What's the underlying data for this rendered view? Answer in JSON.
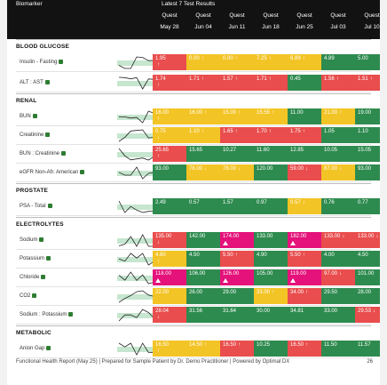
{
  "header": {
    "biomarker_label": "Biomarker",
    "latest_label": "Latest 7 Test Results",
    "columns": [
      {
        "source": "Quest",
        "date": "May 28"
      },
      {
        "source": "Quest",
        "date": "Jun 04"
      },
      {
        "source": "Quest",
        "date": "Jun 11"
      },
      {
        "source": "Quest",
        "date": "Jun 18"
      },
      {
        "source": "Quest",
        "date": "Jun 25"
      },
      {
        "source": "Quest",
        "date": "Jul 03"
      },
      {
        "source": "Quest",
        "date": "Jul 10"
      }
    ]
  },
  "sections": [
    {
      "title": "BLOOD GLUCOSE"
    },
    {
      "title": "RENAL"
    },
    {
      "title": "PROSTATE"
    },
    {
      "title": "ELECTROLYTES"
    },
    {
      "title": "METABOLIC"
    }
  ],
  "rows": [
    {
      "label": "Insulin - Fasting",
      "cells": [
        {
          "v": "1.95",
          "a": "↑",
          "c": "r"
        },
        {
          "v": "0.00",
          "a": "↑",
          "c": "y"
        },
        {
          "v": "0.00",
          "a": "↑",
          "c": "y"
        },
        {
          "v": "7.25",
          "a": "↑",
          "c": "y"
        },
        {
          "v": "6.89",
          "a": "↑",
          "c": "y"
        },
        {
          "v": "4.89",
          "a": "",
          "c": "g"
        },
        {
          "v": "5.00",
          "a": "",
          "c": "g"
        }
      ]
    },
    {
      "label": "ALT : AST",
      "cells": [
        {
          "v": "1.74",
          "a": "↑",
          "c": "r"
        },
        {
          "v": "1.71",
          "a": "↑",
          "c": "r"
        },
        {
          "v": "1.57",
          "a": "↑",
          "c": "r"
        },
        {
          "v": "1.71",
          "a": "↑",
          "c": "r"
        },
        {
          "v": "0.45",
          "a": "",
          "c": "g"
        },
        {
          "v": "1.56",
          "a": "↑",
          "c": "r"
        },
        {
          "v": "1.51",
          "a": "↑",
          "c": "r"
        }
      ]
    },
    {
      "label": "BUN",
      "cells": [
        {
          "v": "16.00",
          "a": "↑",
          "c": "y"
        },
        {
          "v": "16.00",
          "a": "↑",
          "c": "y"
        },
        {
          "v": "15.00",
          "a": "↑",
          "c": "y"
        },
        {
          "v": "15.55",
          "a": "↑",
          "c": "y"
        },
        {
          "v": "11.00",
          "a": "",
          "c": "g"
        },
        {
          "v": "21.00",
          "a": "↑",
          "c": "y"
        },
        {
          "v": "19.00",
          "a": "",
          "c": "g"
        }
      ]
    },
    {
      "label": "Creatinine",
      "cells": [
        {
          "v": "0.75",
          "a": "↓",
          "c": "y"
        },
        {
          "v": "1.10",
          "a": "↑",
          "c": "y"
        },
        {
          "v": "1.65",
          "a": "↑",
          "c": "r"
        },
        {
          "v": "1.70",
          "a": "↑",
          "c": "r"
        },
        {
          "v": "1.75",
          "a": "↑",
          "c": "r"
        },
        {
          "v": "1.05",
          "a": "",
          "c": "g"
        },
        {
          "v": "1.10",
          "a": "",
          "c": "g"
        }
      ]
    },
    {
      "label": "BUN : Creatinine",
      "cells": [
        {
          "v": "25.65",
          "a": "↑",
          "c": "r"
        },
        {
          "v": "15.65",
          "a": "",
          "c": "g"
        },
        {
          "v": "10.27",
          "a": "",
          "c": "g"
        },
        {
          "v": "11.60",
          "a": "",
          "c": "g"
        },
        {
          "v": "12.85",
          "a": "",
          "c": "g"
        },
        {
          "v": "10.05",
          "a": "",
          "c": "g"
        },
        {
          "v": "15.05",
          "a": "",
          "c": "g"
        }
      ]
    },
    {
      "label": "eGFR Non-Afr. American",
      "cells": [
        {
          "v": "93.00",
          "a": "",
          "c": "g"
        },
        {
          "v": "78.00",
          "a": "↓",
          "c": "y"
        },
        {
          "v": "78.00",
          "a": "↓",
          "c": "y"
        },
        {
          "v": "120.00",
          "a": "",
          "c": "g"
        },
        {
          "v": "59.00",
          "a": "↓",
          "c": "r"
        },
        {
          "v": "87.00",
          "a": "↓",
          "c": "y"
        },
        {
          "v": "93.00",
          "a": "",
          "c": "g"
        }
      ]
    },
    {
      "label": "PSA - Total",
      "cells": [
        {
          "v": "2.49",
          "a": "",
          "c": "g"
        },
        {
          "v": "0.57",
          "a": "",
          "c": "g"
        },
        {
          "v": "1.57",
          "a": "",
          "c": "g"
        },
        {
          "v": "0.97",
          "a": "",
          "c": "g"
        },
        {
          "v": "0.57",
          "a": "↓",
          "c": "y"
        },
        {
          "v": "0.76",
          "a": "",
          "c": "g"
        },
        {
          "v": "0.77",
          "a": "",
          "c": "g"
        }
      ]
    },
    {
      "label": "Sodium",
      "cells": [
        {
          "v": "135.00",
          "a": "↓",
          "c": "r"
        },
        {
          "v": "142.00",
          "a": "",
          "c": "g"
        },
        {
          "v": "174.00",
          "a": "▲",
          "c": "m"
        },
        {
          "v": "133.00",
          "a": "",
          "c": "g"
        },
        {
          "v": "182.00",
          "a": "▲",
          "c": "m"
        },
        {
          "v": "133.00",
          "a": "↓",
          "c": "r"
        },
        {
          "v": "133.00",
          "a": "↓",
          "c": "r"
        }
      ]
    },
    {
      "label": "Potassium",
      "cells": [
        {
          "v": "4.80",
          "a": "↑",
          "c": "y"
        },
        {
          "v": "4.50",
          "a": "",
          "c": "g"
        },
        {
          "v": "5.50",
          "a": "↑",
          "c": "r"
        },
        {
          "v": "4.90",
          "a": "",
          "c": "g"
        },
        {
          "v": "5.50",
          "a": "↑",
          "c": "r"
        },
        {
          "v": "4.00",
          "a": "",
          "c": "g"
        },
        {
          "v": "4.50",
          "a": "",
          "c": "g"
        }
      ]
    },
    {
      "label": "Chloride",
      "cells": [
        {
          "v": "118.00",
          "a": "▲",
          "c": "m"
        },
        {
          "v": "106.00",
          "a": "",
          "c": "g"
        },
        {
          "v": "126.00",
          "a": "▲",
          "c": "m"
        },
        {
          "v": "105.00",
          "a": "",
          "c": "g"
        },
        {
          "v": "119.00",
          "a": "▲",
          "c": "m"
        },
        {
          "v": "97.00",
          "a": "↓",
          "c": "r"
        },
        {
          "v": "101.00",
          "a": "",
          "c": "g"
        }
      ]
    },
    {
      "label": "CO2",
      "cells": [
        {
          "v": "22.00",
          "a": "",
          "c": "y"
        },
        {
          "v": "26.00",
          "a": "",
          "c": "g"
        },
        {
          "v": "29.00",
          "a": "",
          "c": "g"
        },
        {
          "v": "33.00",
          "a": "↑",
          "c": "y"
        },
        {
          "v": "34.00",
          "a": "↑",
          "c": "r"
        },
        {
          "v": "29.50",
          "a": "",
          "c": "g"
        },
        {
          "v": "28.00",
          "a": "",
          "c": "g"
        }
      ]
    },
    {
      "label": "Sodium : Potassium",
      "cells": [
        {
          "v": "28.04",
          "a": "↓",
          "c": "r"
        },
        {
          "v": "31.56",
          "a": "",
          "c": "g"
        },
        {
          "v": "31.64",
          "a": "",
          "c": "g"
        },
        {
          "v": "30.00",
          "a": "",
          "c": "g"
        },
        {
          "v": "34.81",
          "a": "",
          "c": "g"
        },
        {
          "v": "33.00",
          "a": "",
          "c": "g"
        },
        {
          "v": "29.53",
          "a": "↓",
          "c": "r"
        }
      ]
    },
    {
      "label": "Anion Gap",
      "cells": [
        {
          "v": "16.50",
          "a": "↑",
          "c": "y"
        },
        {
          "v": "14.50",
          "a": "↑",
          "c": "y"
        },
        {
          "v": "16.50",
          "a": "↑",
          "c": "r"
        },
        {
          "v": "10.25",
          "a": "",
          "c": "g"
        },
        {
          "v": "16.50",
          "a": "↑",
          "c": "r"
        },
        {
          "v": "11.50",
          "a": "",
          "c": "g"
        },
        {
          "v": "11.57",
          "a": "",
          "c": "g"
        }
      ]
    }
  ],
  "footer": {
    "text": "Functional Health Report (May 25) | Prepared for Sample Patient by Dr. Demo Practitioner | Powered by Optimal DX",
    "page": "26"
  }
}
